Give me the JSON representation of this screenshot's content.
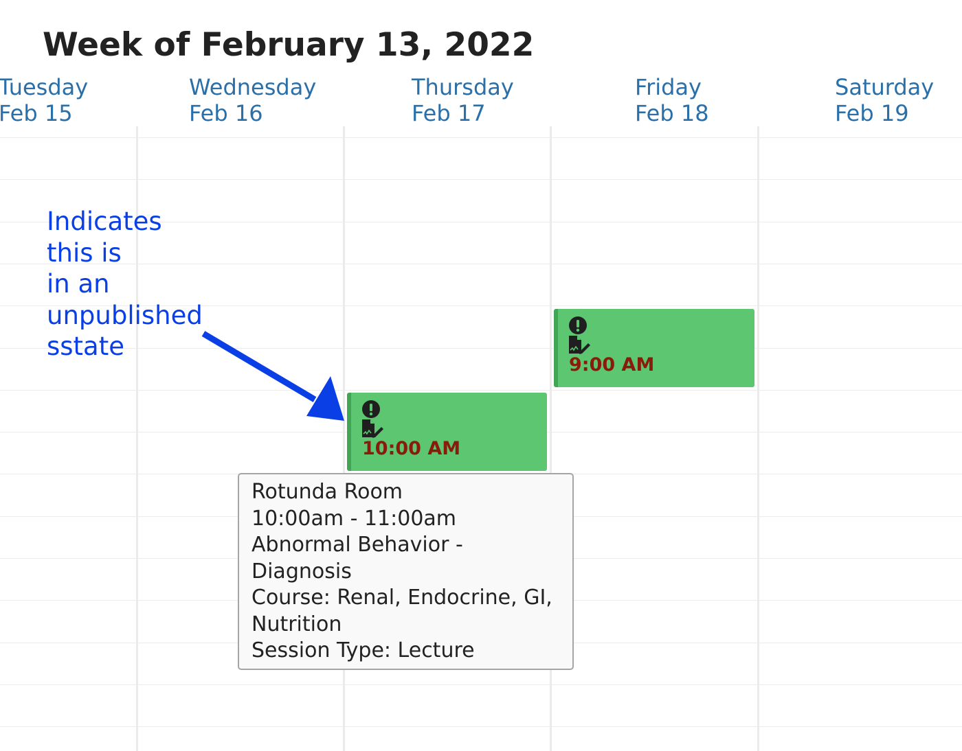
{
  "title": "Week of February 13, 2022",
  "days": [
    {
      "name": "Tuesday",
      "date": "Feb 15"
    },
    {
      "name": "Wednesday",
      "date": "Feb 16"
    },
    {
      "name": "Thursday",
      "date": "Feb 17"
    },
    {
      "name": "Friday",
      "date": "Feb 18"
    },
    {
      "name": "Saturday",
      "date": "Feb 19"
    }
  ],
  "annotation": {
    "lines": [
      "Indicates",
      "this is",
      "in an",
      "unpublished",
      "sstate"
    ],
    "color": "#0a3fe6"
  },
  "events": [
    {
      "day": "Thursday",
      "time": "10:00 AM",
      "icons": [
        "exclamation-circle-icon",
        "document-pencil-icon"
      ],
      "color": "#5dc670"
    },
    {
      "day": "Friday",
      "time": "9:00 AM",
      "icons": [
        "exclamation-circle-icon",
        "document-pencil-icon"
      ],
      "color": "#5dc670"
    }
  ],
  "tooltip": {
    "lines": [
      "Rotunda Room",
      "10:00am - 11:00am",
      "Abnormal Behavior -",
      "Diagnosis",
      "Course: Renal, Endocrine, GI,",
      "Nutrition",
      "Session Type: Lecture"
    ]
  },
  "colors": {
    "header_link": "#2a6fa8",
    "event_time": "#8a1a0a",
    "event_border": "#40a656"
  }
}
